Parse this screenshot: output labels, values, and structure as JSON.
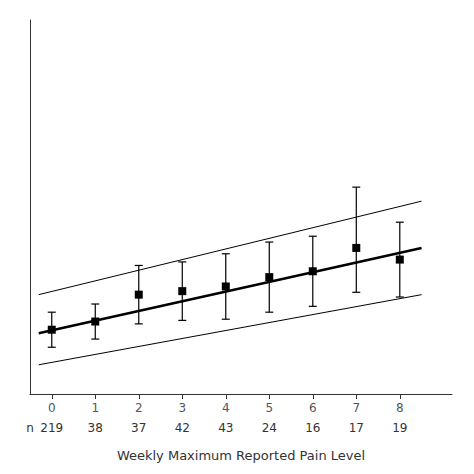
{
  "chart_data": {
    "type": "scatter",
    "xlabel": "Weekly Maximum Reported Pain Level",
    "xlim": [
      -0.5,
      9.2
    ],
    "xticks": [
      0,
      1,
      2,
      3,
      4,
      5,
      6,
      7,
      8
    ],
    "ylim": [
      0,
      32
    ],
    "tick_labels": "x",
    "grid": false,
    "series": [
      {
        "type": "line",
        "x": [
          -0.3,
          8.5
        ],
        "values": [
          8.5,
          16.5
        ],
        "color": "black",
        "line_style": "thin"
      },
      {
        "type": "line",
        "x": [
          -0.3,
          8.5
        ],
        "values": [
          2.5,
          8.5
        ],
        "color": "black",
        "line_style": "thin"
      },
      {
        "type": "line",
        "x": [
          -0.3,
          8.5
        ],
        "values": [
          5.2,
          12.5
        ],
        "color": "black",
        "line_style": "thick"
      },
      {
        "type": "scatter",
        "x": [
          0,
          1,
          2,
          3,
          4,
          5,
          6,
          7,
          8
        ],
        "values": [
          5.5,
          6.2,
          8.5,
          8.8,
          9.2,
          10.0,
          10.5,
          12.5,
          11.5
        ],
        "yerr_lower": [
          1.5,
          1.5,
          2.5,
          2.5,
          2.8,
          3.0,
          3.0,
          3.8,
          3.2
        ],
        "yerr_upper": [
          1.5,
          1.5,
          2.5,
          2.5,
          2.8,
          3.0,
          3.0,
          5.2,
          3.2
        ],
        "color": "black",
        "marker": "square"
      }
    ],
    "annotations": [
      {
        "text": "n",
        "x": -0.5
      },
      {
        "text": "219",
        "x": 0
      },
      {
        "text": "38",
        "x": 1
      },
      {
        "text": "37",
        "x": 2
      },
      {
        "text": "42",
        "x": 3
      },
      {
        "text": "43",
        "x": 4
      },
      {
        "text": "24",
        "x": 5
      },
      {
        "text": "16",
        "x": 6
      },
      {
        "text": "17",
        "x": 7
      },
      {
        "text": "19",
        "x": 8
      }
    ]
  }
}
